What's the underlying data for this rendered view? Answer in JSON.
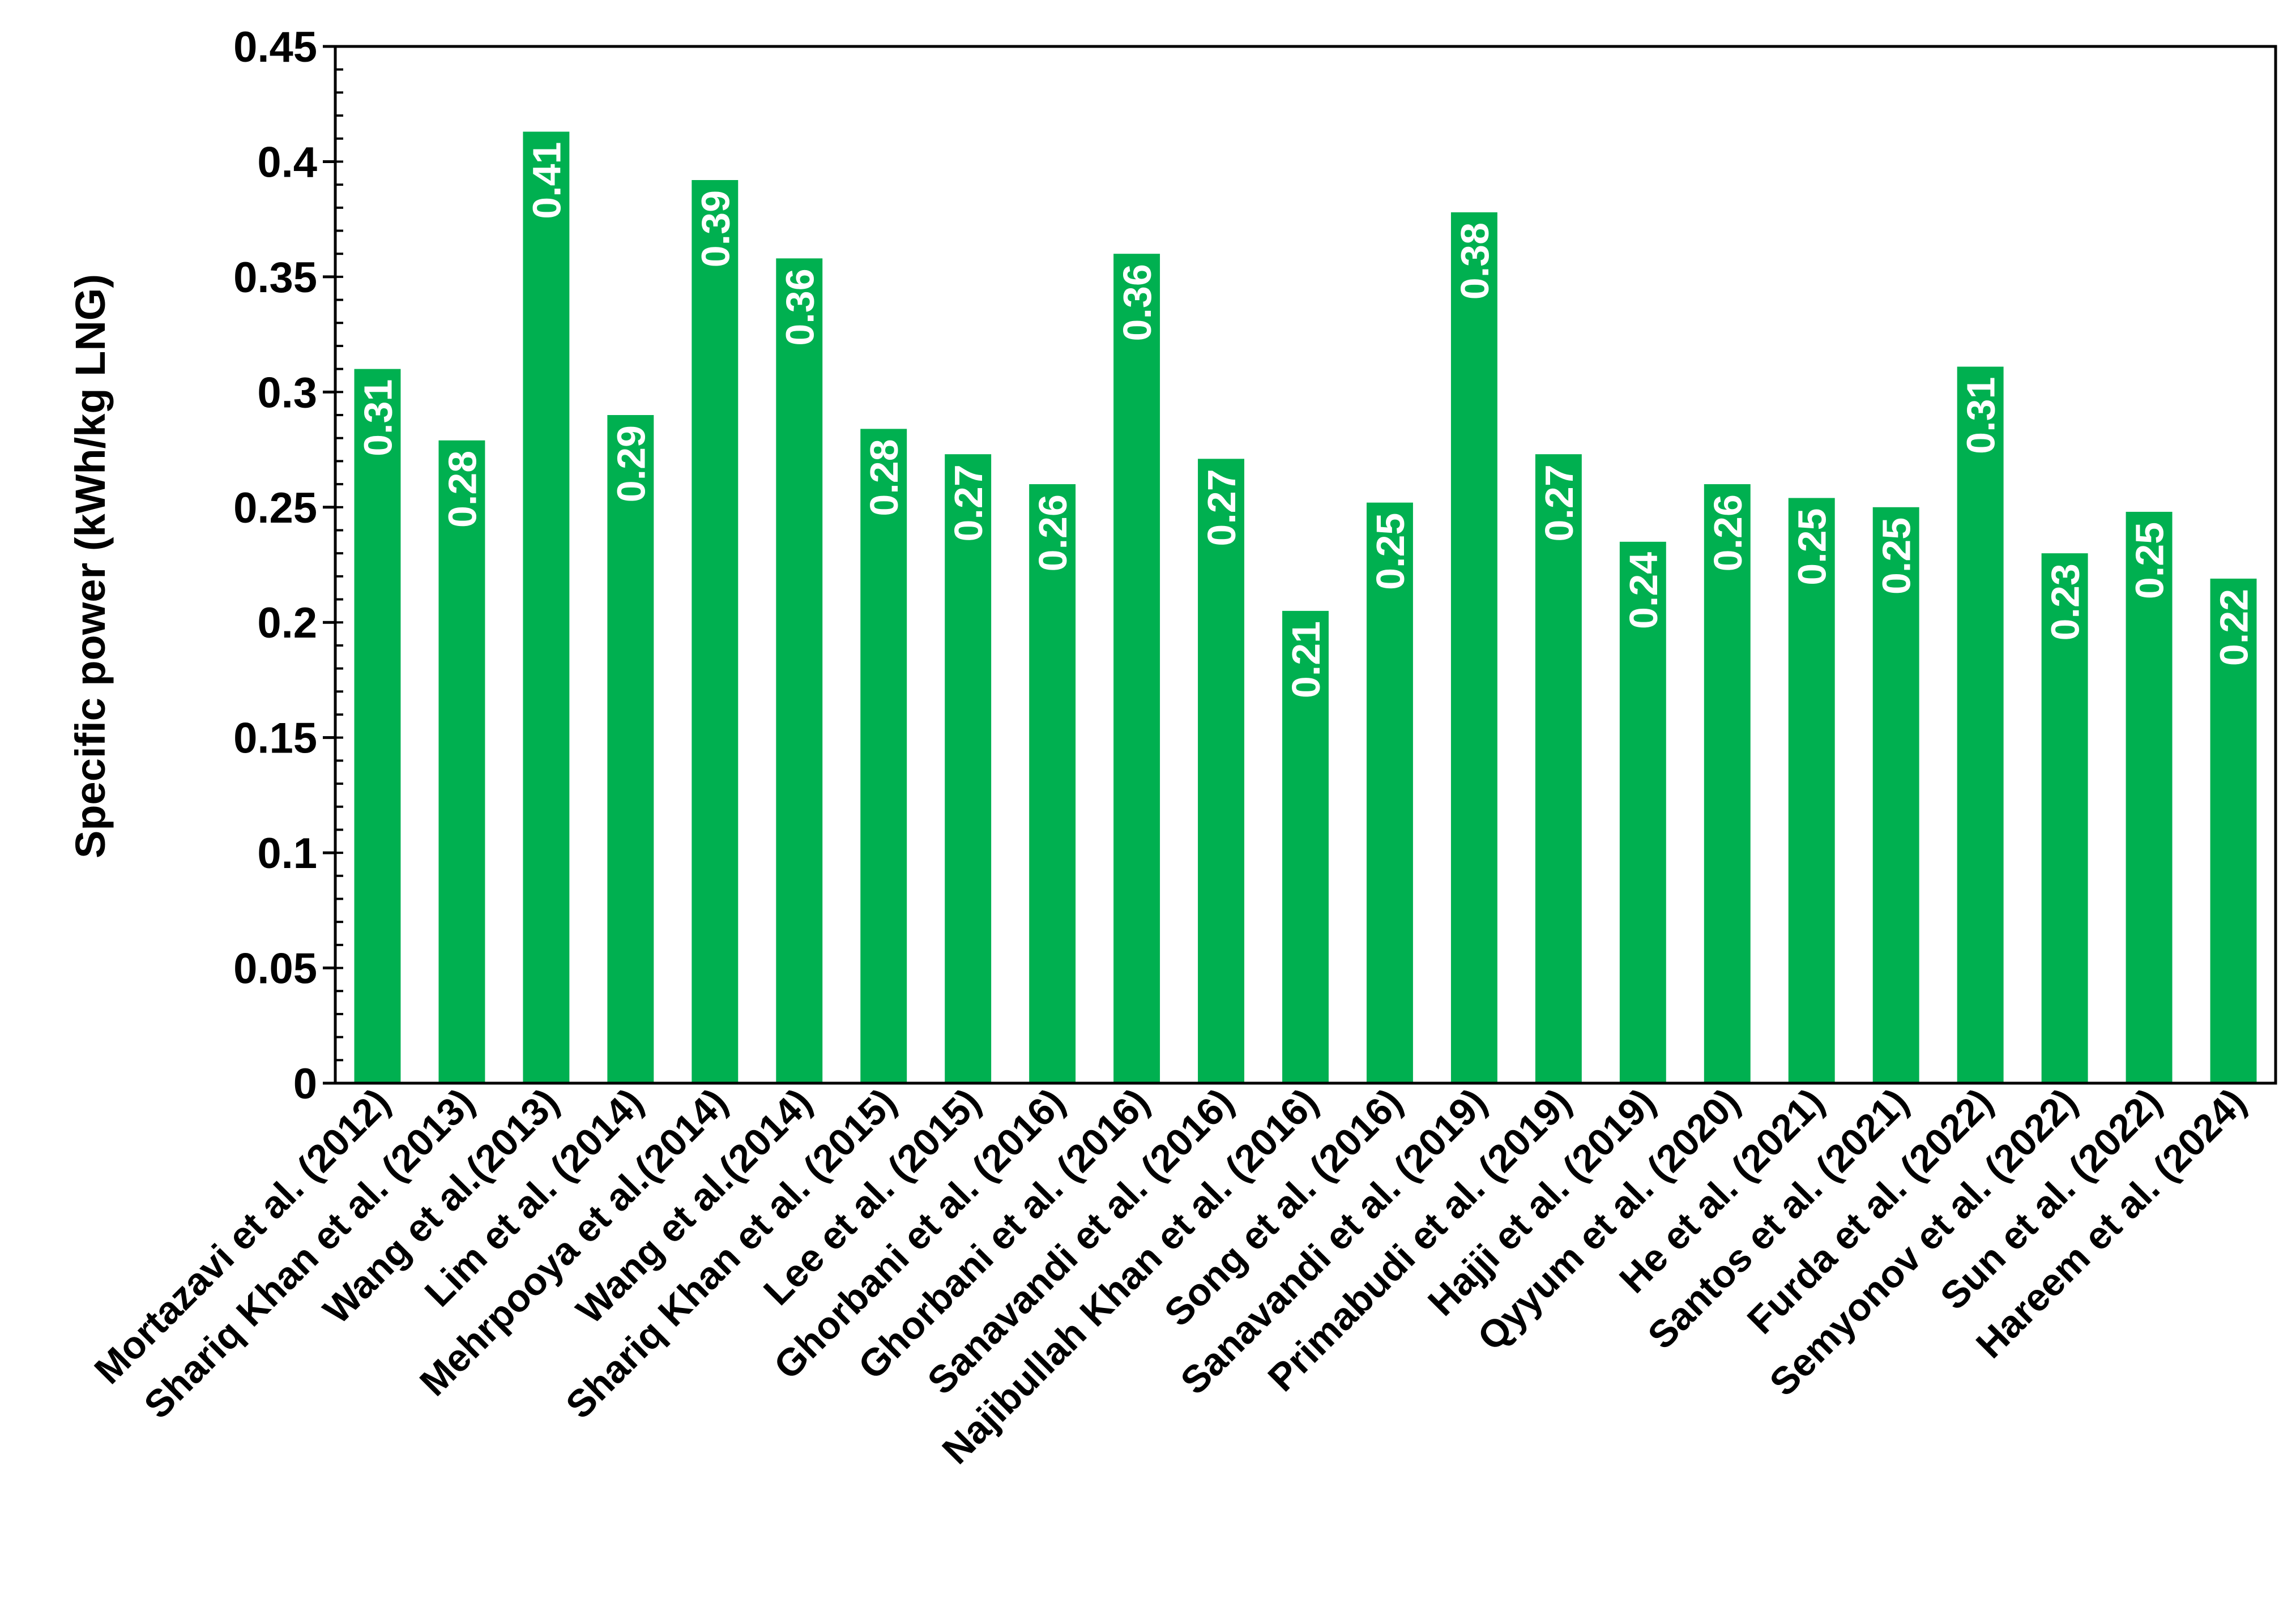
{
  "chart_data": {
    "type": "bar",
    "ylabel": "Specific power (kWh/kg LNG)",
    "xlabel": "",
    "ylim": [
      0,
      0.45
    ],
    "yticks": [
      0,
      0.05,
      0.1,
      0.15,
      0.2,
      0.25,
      0.3,
      0.35,
      0.4,
      0.45
    ],
    "ytick_labels": [
      "0",
      "0.05",
      "0.1",
      "0.15",
      "0.2",
      "0.25",
      "0.3",
      "0.35",
      "0.4",
      "0.45"
    ],
    "grid": false,
    "legend": "none",
    "bar_color": "#00b050",
    "label_color": "#ffffff",
    "categories": [
      "Mortazavi et al. (2012)",
      "Shariq Khan et al. (2013)",
      "Wang et al.(2013)",
      "Lim et al. (2014)",
      "Mehrpooya et al.(2014)",
      "Wang et al.(2014)",
      "Shariq Khan et al. (2015)",
      "Lee et al. (2015)",
      "Ghorbani et al. (2016)",
      "Ghorbani et al. (2016)",
      "Sanavandi et al. (2016)",
      "Najibullah Khan et al. (2016)",
      "Song et al. (2016)",
      "Sanavandi et al. (2019)",
      "Primabudi et al. (2019)",
      "Hajji et al. (2019)",
      "Qyyum et al. (2020)",
      "He et al. (2021)",
      "Santos et al. (2021)",
      "Furda et al. (2022)",
      "Semyonov et al. (2022)",
      "Sun et al. (2022)",
      "Hareem et al. (2024)"
    ],
    "values": [
      0.31,
      0.279,
      0.413,
      0.29,
      0.392,
      0.358,
      0.284,
      0.273,
      0.26,
      0.36,
      0.271,
      0.205,
      0.252,
      0.378,
      0.273,
      0.235,
      0.26,
      0.254,
      0.25,
      0.311,
      0.23,
      0.248,
      0.219
    ],
    "data_labels": [
      "0.31",
      "0.28",
      "0.41",
      "0.29",
      "0.39",
      "0.36",
      "0.28",
      "0.27",
      "0.26",
      "0.36",
      "0.27",
      "0.21",
      "0.25",
      "0.38",
      "0.27",
      "0.24",
      "0.26",
      "0.25",
      "0.25",
      "0.31",
      "0.23",
      "0.25",
      "0.22"
    ]
  }
}
